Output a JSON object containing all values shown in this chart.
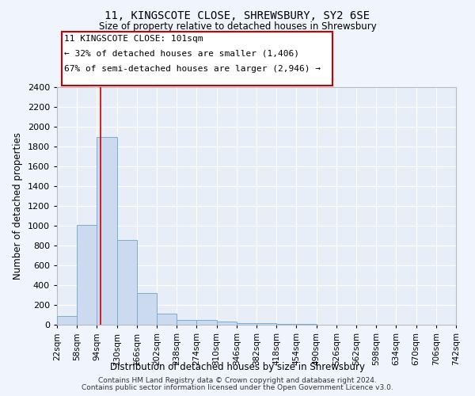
{
  "title": "11, KINGSCOTE CLOSE, SHREWSBURY, SY2 6SE",
  "subtitle": "Size of property relative to detached houses in Shrewsbury",
  "xlabel": "Distribution of detached houses by size in Shrewsbury",
  "ylabel": "Number of detached properties",
  "footnote1": "Contains HM Land Registry data © Crown copyright and database right 2024.",
  "footnote2": "Contains public sector information licensed under the Open Government Licence v3.0.",
  "bin_edges": [
    22,
    58,
    94,
    130,
    166,
    202,
    238,
    274,
    310,
    346,
    382,
    418,
    454,
    490,
    526,
    562,
    598,
    634,
    670,
    706,
    742
  ],
  "bar_heights": [
    90,
    1010,
    1900,
    860,
    320,
    115,
    50,
    45,
    30,
    20,
    20,
    5,
    5,
    3,
    2,
    2,
    1,
    1,
    1,
    1
  ],
  "bar_color": "#ccdaf0",
  "bar_edge_color": "#7aadd4",
  "bg_color": "#e8eef8",
  "grid_color": "#ffffff",
  "red_line_x": 101,
  "annotation_line1": "11 KINGSCOTE CLOSE: 101sqm",
  "annotation_line2": "← 32% of detached houses are smaller (1,406)",
  "annotation_line3": "67% of semi-detached houses are larger (2,946) →",
  "annotation_box_color": "#ffffff",
  "annotation_box_edge": "#cc0000",
  "ylim": [
    0,
    2400
  ],
  "yticks": [
    0,
    200,
    400,
    600,
    800,
    1000,
    1200,
    1400,
    1600,
    1800,
    2000,
    2200,
    2400
  ]
}
